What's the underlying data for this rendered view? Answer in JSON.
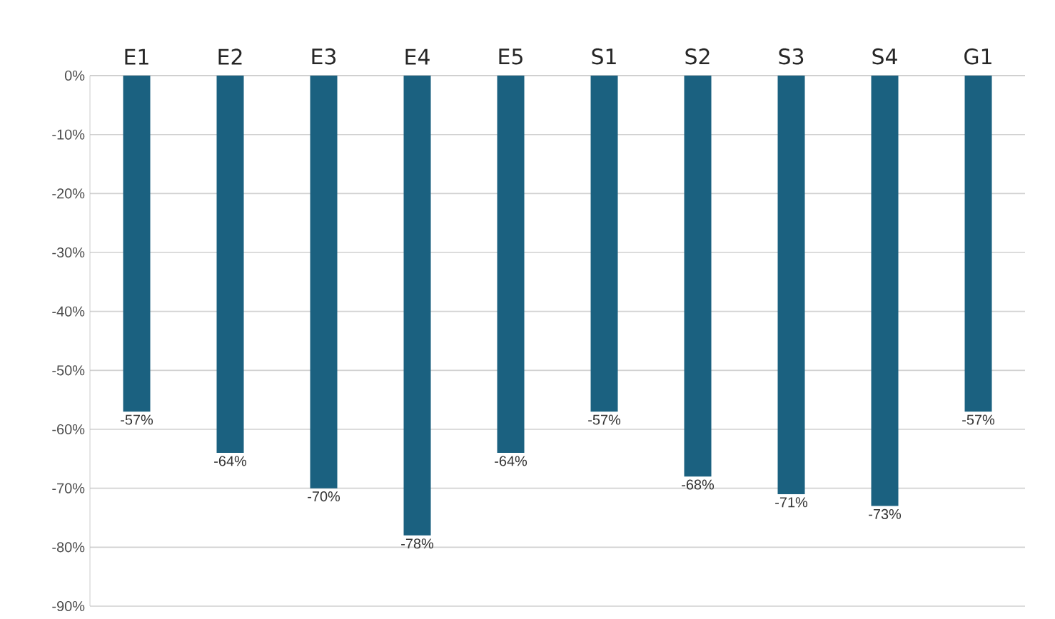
{
  "chart_data": {
    "type": "bar",
    "categories": [
      "E1",
      "E2",
      "E3",
      "E4",
      "E5",
      "S1",
      "S2",
      "S3",
      "S4",
      "G1"
    ],
    "values": [
      -57,
      -64,
      -70,
      -78,
      -64,
      -57,
      -68,
      -71,
      -73,
      -57
    ],
    "value_labels": [
      "-57%",
      "-64%",
      "-70%",
      "-78%",
      "-64%",
      "-57%",
      "-68%",
      "-71%",
      "-73%",
      "-57%"
    ],
    "color": "#1b6180",
    "ylim": [
      -90,
      0
    ],
    "yticks": [
      {
        "value": 0,
        "label": "0%"
      },
      {
        "value": -10,
        "label": "-10%"
      },
      {
        "value": -20,
        "label": "-20%"
      },
      {
        "value": -30,
        "label": "-30%"
      },
      {
        "value": -40,
        "label": "-40%"
      },
      {
        "value": -50,
        "label": "-50%"
      },
      {
        "value": -60,
        "label": "-60%"
      },
      {
        "value": -70,
        "label": "-70%"
      },
      {
        "value": -80,
        "label": "-80%"
      },
      {
        "value": -90,
        "label": "-90%"
      }
    ],
    "grid": "y"
  }
}
